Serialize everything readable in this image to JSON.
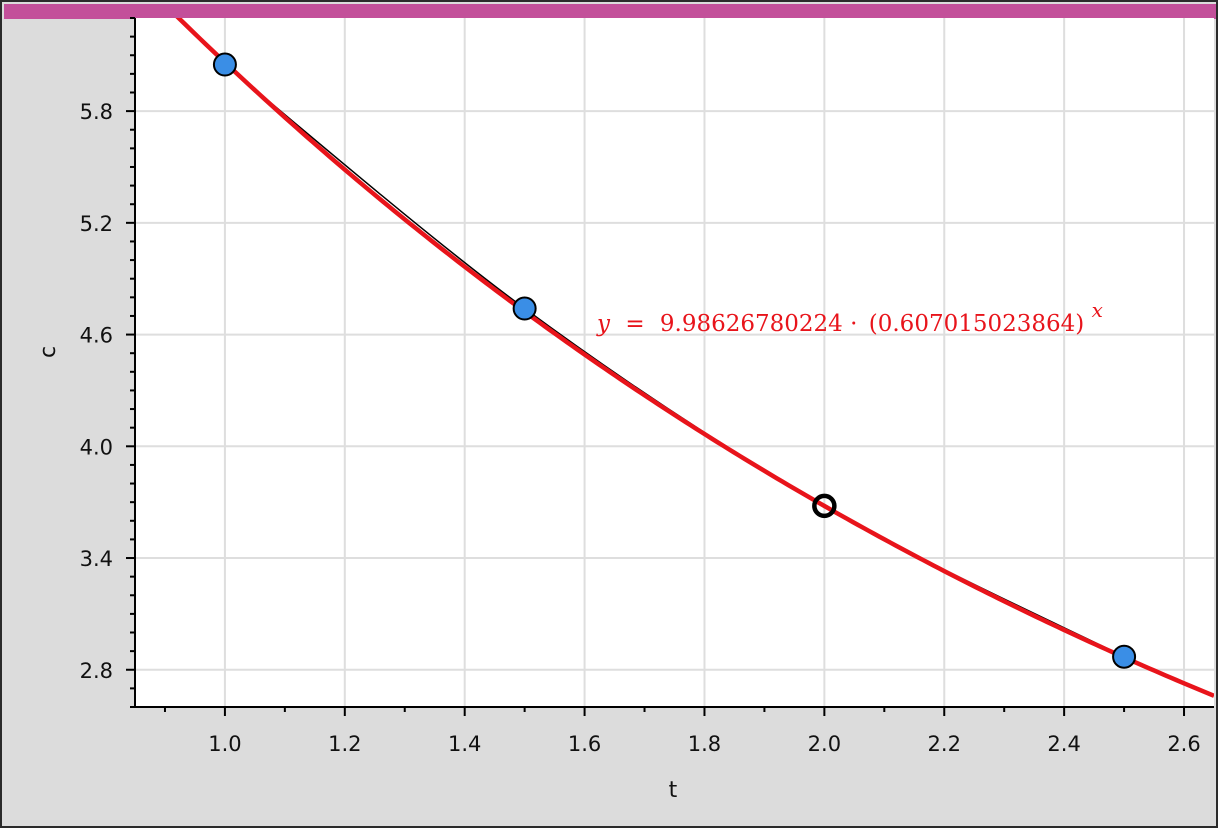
{
  "window": {
    "accent_bar_color": "#c3509a"
  },
  "chart_data": {
    "type": "scatter",
    "xlabel": "t",
    "ylabel": "c",
    "xlim": [
      0.85,
      2.65
    ],
    "ylim": [
      2.6,
      6.3
    ],
    "x_ticks": [
      1.0,
      1.2,
      1.4,
      1.6,
      1.8,
      2.0,
      2.2,
      2.4,
      2.6
    ],
    "x_tick_labels": [
      "1.0",
      "1.2",
      "1.4",
      "1.6",
      "1.8",
      "2.0",
      "2.2",
      "2.4",
      "2.6"
    ],
    "y_ticks": [
      2.8,
      3.4,
      4.0,
      4.6,
      5.2,
      5.8
    ],
    "y_tick_labels": [
      "2.8",
      "3.4",
      "4.0",
      "4.6",
      "5.2",
      "5.8"
    ],
    "x_minor_step": 0.2,
    "y_minor_step": 0.1,
    "grid": true,
    "points": [
      {
        "x": 1.0,
        "y": 6.05,
        "style": "filled"
      },
      {
        "x": 1.5,
        "y": 4.74,
        "style": "filled"
      },
      {
        "x": 2.0,
        "y": 3.68,
        "style": "open-selected"
      },
      {
        "x": 2.5,
        "y": 2.87,
        "style": "filled"
      }
    ],
    "point_color": "#3a8ee6",
    "regression": {
      "model": "exponential",
      "a": 9.98626780224,
      "b": 0.607015023864,
      "color": "#e8141b",
      "label_var": "y",
      "label_eq": "=",
      "label_coef": "9.98626780224",
      "label_dot": "·",
      "label_base": "(0.607015023864)",
      "label_exp": "x"
    },
    "connect_line_color": "#000000"
  }
}
